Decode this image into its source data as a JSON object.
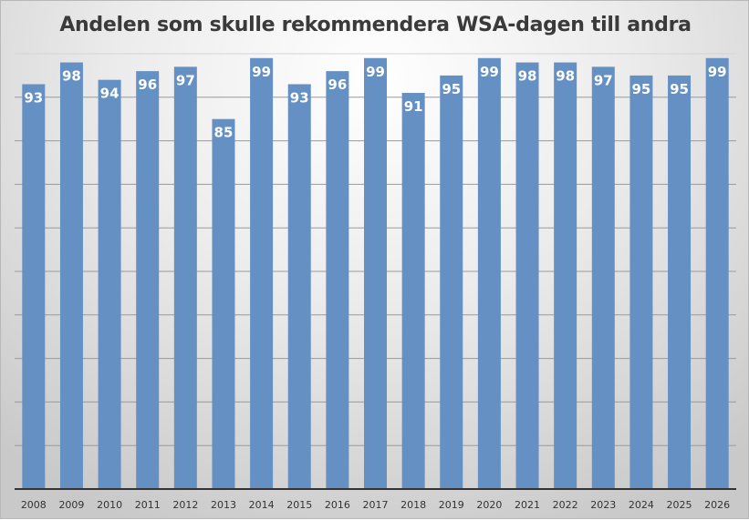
{
  "chart_data": {
    "type": "bar",
    "title": "Andelen som skulle rekommendera WSA-dagen till andra",
    "categories": [
      "2008",
      "2009",
      "2010",
      "2011",
      "2012",
      "2013",
      "2014",
      "2015",
      "2016",
      "2017",
      "2018",
      "2019",
      "2020",
      "2021",
      "2022",
      "2023",
      "2024",
      "2025",
      "2026"
    ],
    "values": [
      93,
      98,
      94,
      96,
      97,
      85,
      99,
      93,
      96,
      99,
      91,
      95,
      99,
      98,
      98,
      97,
      95,
      95,
      99
    ],
    "xlabel": "",
    "ylabel": "",
    "ylim": [
      0,
      100
    ],
    "grid_step": 10,
    "grid": true,
    "data_labels": "inside-top",
    "bar_color": "#6590c4",
    "legend": "none"
  }
}
